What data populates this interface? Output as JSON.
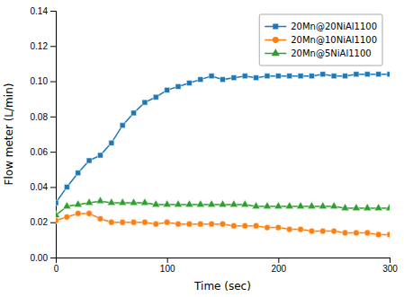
{
  "chart_data": {
    "type": "line",
    "xlabel": "Time (sec)",
    "ylabel": "Flow meter (L/min)",
    "xlim": [
      0,
      300
    ],
    "ylim": [
      0.0,
      0.14
    ],
    "xticks": [
      0,
      100,
      200,
      300
    ],
    "yticks": [
      {
        "value": 0.0,
        "label": "0.00"
      },
      0.02,
      0.04,
      0.06,
      0.08,
      {
        "value": 0.1,
        "label": "0.10"
      },
      0.12,
      0.14
    ],
    "x": [
      0,
      10,
      20,
      30,
      40,
      50,
      60,
      70,
      80,
      90,
      100,
      110,
      120,
      130,
      140,
      150,
      160,
      170,
      180,
      190,
      200,
      210,
      220,
      230,
      240,
      250,
      260,
      270,
      280,
      290,
      300
    ],
    "series": [
      {
        "name": "20Mn@20NiAl1100",
        "marker": "square",
        "values": [
          0.031,
          0.04,
          0.048,
          0.055,
          0.058,
          0.065,
          0.075,
          0.082,
          0.088,
          0.091,
          0.095,
          0.097,
          0.099,
          0.101,
          0.103,
          0.101,
          0.102,
          0.103,
          0.102,
          0.103,
          0.103,
          0.103,
          0.103,
          0.103,
          0.104,
          0.103,
          0.103,
          0.104,
          0.104,
          0.104,
          0.104
        ]
      },
      {
        "name": "20Mn@10NiAl1100",
        "marker": "circle",
        "values": [
          0.021,
          0.023,
          0.025,
          0.025,
          0.022,
          0.02,
          0.02,
          0.02,
          0.02,
          0.019,
          0.02,
          0.019,
          0.019,
          0.019,
          0.019,
          0.019,
          0.018,
          0.018,
          0.018,
          0.017,
          0.017,
          0.016,
          0.016,
          0.015,
          0.015,
          0.015,
          0.014,
          0.014,
          0.014,
          0.013,
          0.013
        ]
      },
      {
        "name": "20Mn@5NiAl1100",
        "marker": "triangle",
        "values": [
          0.024,
          0.029,
          0.03,
          0.031,
          0.032,
          0.031,
          0.031,
          0.031,
          0.031,
          0.03,
          0.03,
          0.03,
          0.03,
          0.03,
          0.03,
          0.03,
          0.03,
          0.03,
          0.029,
          0.029,
          0.029,
          0.029,
          0.029,
          0.029,
          0.029,
          0.029,
          0.028,
          0.028,
          0.028,
          0.028,
          0.028
        ]
      }
    ],
    "legend": "upper right",
    "grid": false
  }
}
